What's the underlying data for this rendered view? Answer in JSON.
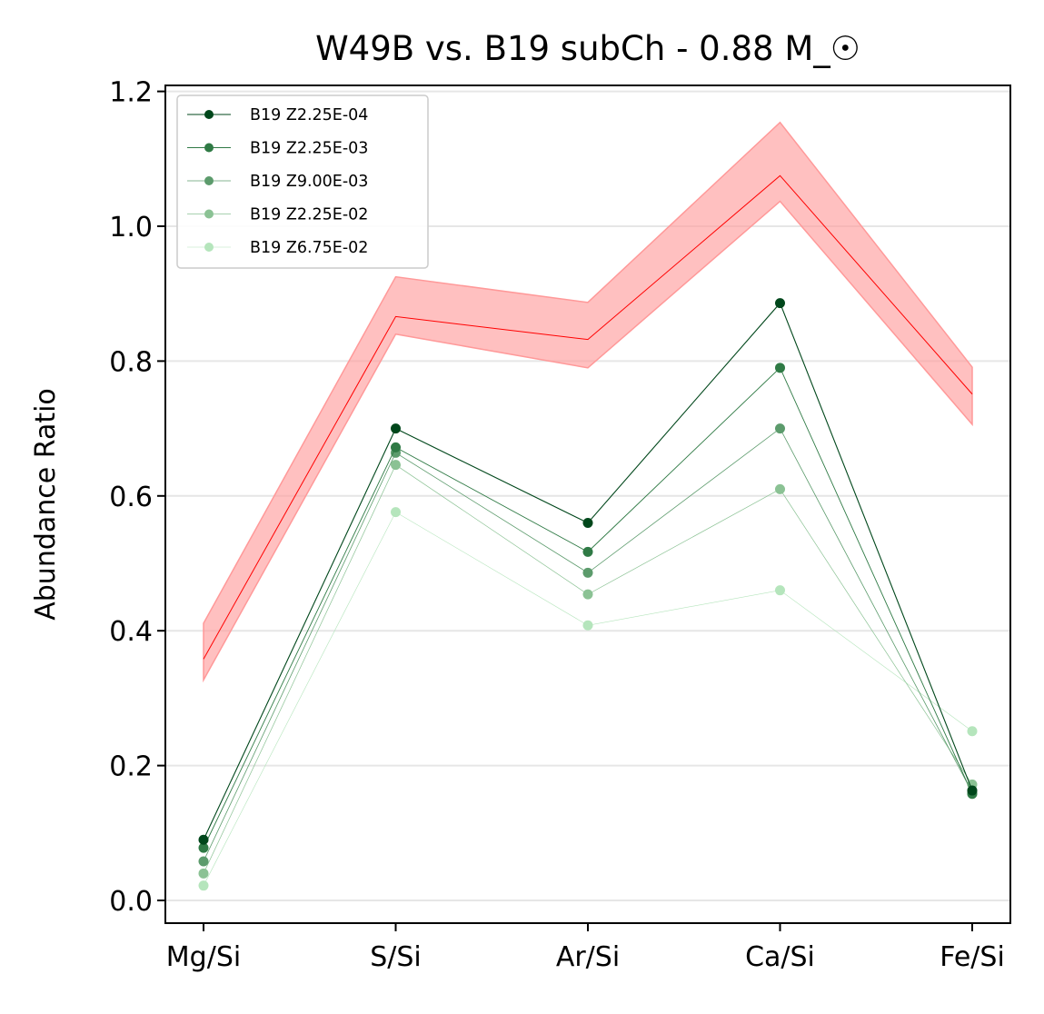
{
  "chart_data": {
    "type": "line",
    "title": "W49B vs. B19 subCh - 0.88 M_☉",
    "xlabel": "",
    "ylabel": "Abundance Ratio",
    "categories": [
      "Mg/Si",
      "S/Si",
      "Ar/Si",
      "Ca/Si",
      "Fe/Si"
    ],
    "ylim": [
      -0.035,
      1.21
    ],
    "yticks": [
      "0.0",
      "0.2",
      "0.4",
      "0.6",
      "0.8",
      "1.0",
      "1.2"
    ],
    "grid": "horizontal",
    "legend_position": "upper-left",
    "observed": {
      "color": "#ff0000",
      "band_color": "#ff9999",
      "values": [
        0.358,
        0.866,
        0.832,
        1.075,
        0.751
      ],
      "lower": [
        0.327,
        0.84,
        0.79,
        1.037,
        0.706
      ],
      "upper": [
        0.411,
        0.925,
        0.887,
        1.154,
        0.791
      ]
    },
    "series": [
      {
        "name": "B19 Z2.25E-04",
        "color": "#00471b",
        "values": [
          0.09,
          0.7,
          0.56,
          0.886,
          0.163
        ]
      },
      {
        "name": "B19 Z2.25E-03",
        "color": "#2f7a45",
        "values": [
          0.078,
          0.672,
          0.517,
          0.79,
          0.158
        ]
      },
      {
        "name": "B19 Z9.00E-03",
        "color": "#5c9b6c",
        "values": [
          0.058,
          0.664,
          0.486,
          0.7,
          0.16
        ]
      },
      {
        "name": "B19 Z2.25E-02",
        "color": "#8bc294",
        "values": [
          0.04,
          0.646,
          0.454,
          0.61,
          0.172
        ]
      },
      {
        "name": "B19 Z6.75E-02",
        "color": "#b5e5bc",
        "values": [
          0.022,
          0.576,
          0.408,
          0.46,
          0.251
        ]
      }
    ]
  }
}
